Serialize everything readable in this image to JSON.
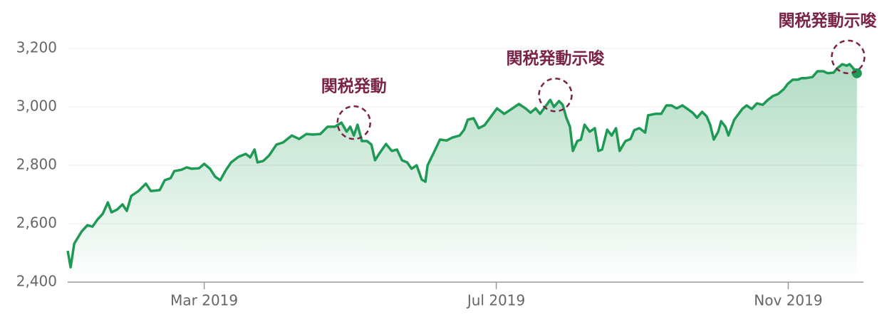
{
  "chart_data": {
    "type": "line",
    "color": "#1f9a55",
    "annotation_color": "#7a2448",
    "grid": true,
    "xlim": [
      1.13,
      12.03
    ],
    "ylim": [
      2400,
      3270
    ],
    "xticks": [
      {
        "value": 3,
        "label": "Mar 2019"
      },
      {
        "value": 7,
        "label": "Jul 2019"
      },
      {
        "value": 11,
        "label": "Nov 2019"
      }
    ],
    "yticks": [
      {
        "value": 2400,
        "label": "2,400"
      },
      {
        "value": 2600,
        "label": "2,600"
      },
      {
        "value": 2800,
        "label": "2,800"
      },
      {
        "value": 3000,
        "label": "3,000"
      },
      {
        "value": 3200,
        "label": "3,200"
      }
    ],
    "annotations": [
      {
        "text": "関税発動",
        "x": 5.05,
        "y": 2946
      },
      {
        "text": "関税発動示唆",
        "x": 7.81,
        "y": 3041
      },
      {
        "text": "関税発動示唆",
        "x": 11.82,
        "y": 3171
      }
    ],
    "x": [
      1.13,
      1.17,
      1.22,
      1.32,
      1.4,
      1.47,
      1.54,
      1.61,
      1.68,
      1.73,
      1.81,
      1.88,
      1.94,
      2.0,
      2.1,
      2.2,
      2.27,
      2.39,
      2.46,
      2.54,
      2.59,
      2.69,
      2.76,
      2.83,
      2.93,
      3.0,
      3.08,
      3.15,
      3.22,
      3.3,
      3.37,
      3.47,
      3.57,
      3.63,
      3.69,
      3.73,
      3.81,
      3.89,
      3.99,
      4.08,
      4.2,
      4.3,
      4.4,
      4.49,
      4.59,
      4.69,
      4.79,
      4.88,
      4.95,
      5.0,
      5.05,
      5.1,
      5.16,
      5.23,
      5.29,
      5.34,
      5.4,
      5.49,
      5.57,
      5.64,
      5.71,
      5.78,
      5.84,
      5.91,
      5.98,
      6.03,
      6.06,
      6.15,
      6.23,
      6.32,
      6.4,
      6.5,
      6.56,
      6.61,
      6.69,
      6.76,
      6.84,
      6.94,
      7.01,
      7.11,
      7.21,
      7.31,
      7.4,
      7.47,
      7.54,
      7.6,
      7.67,
      7.74,
      7.79,
      7.86,
      7.91,
      7.96,
      8.01,
      8.05,
      8.11,
      8.16,
      8.21,
      8.28,
      8.35,
      8.4,
      8.45,
      8.52,
      8.58,
      8.64,
      8.69,
      8.77,
      8.84,
      8.89,
      8.96,
      9.04,
      9.08,
      9.18,
      9.26,
      9.33,
      9.4,
      9.47,
      9.55,
      9.62,
      9.69,
      9.75,
      9.82,
      9.88,
      9.93,
      9.98,
      10.04,
      10.08,
      10.14,
      10.18,
      10.26,
      10.32,
      10.37,
      10.43,
      10.5,
      10.57,
      10.65,
      10.72,
      10.79,
      10.86,
      10.94,
      10.99,
      11.06,
      11.13,
      11.18,
      11.23,
      11.33,
      11.4,
      11.48,
      11.54,
      11.62,
      11.67,
      11.74,
      11.8,
      11.84,
      11.89,
      11.94
    ],
    "values": [
      2507,
      2451,
      2532,
      2573,
      2595,
      2590,
      2615,
      2634,
      2673,
      2639,
      2649,
      2666,
      2644,
      2695,
      2712,
      2737,
      2712,
      2715,
      2749,
      2756,
      2780,
      2785,
      2793,
      2788,
      2790,
      2805,
      2788,
      2761,
      2749,
      2785,
      2810,
      2829,
      2839,
      2827,
      2854,
      2810,
      2815,
      2834,
      2871,
      2878,
      2902,
      2890,
      2907,
      2905,
      2907,
      2932,
      2932,
      2946,
      2915,
      2932,
      2902,
      2939,
      2883,
      2883,
      2871,
      2817,
      2841,
      2873,
      2849,
      2854,
      2817,
      2810,
      2788,
      2800,
      2751,
      2744,
      2800,
      2846,
      2888,
      2885,
      2895,
      2902,
      2922,
      2956,
      2961,
      2927,
      2937,
      2971,
      2995,
      2976,
      2993,
      3010,
      2995,
      2980,
      2995,
      2976,
      3000,
      3024,
      3000,
      3020,
      3007,
      2963,
      2932,
      2849,
      2883,
      2888,
      2939,
      2915,
      2927,
      2849,
      2854,
      2922,
      2902,
      2927,
      2849,
      2883,
      2890,
      2920,
      2927,
      2912,
      2971,
      2976,
      2976,
      3005,
      3005,
      2995,
      3005,
      2993,
      2980,
      2963,
      2983,
      2968,
      2939,
      2888,
      2915,
      2951,
      2932,
      2902,
      2956,
      2976,
      2993,
      3005,
      2993,
      3012,
      3007,
      3024,
      3037,
      3044,
      3061,
      3078,
      3093,
      3093,
      3098,
      3098,
      3102,
      3122,
      3122,
      3115,
      3117,
      3132,
      3146,
      3141,
      3146,
      3132,
      3115
    ]
  }
}
